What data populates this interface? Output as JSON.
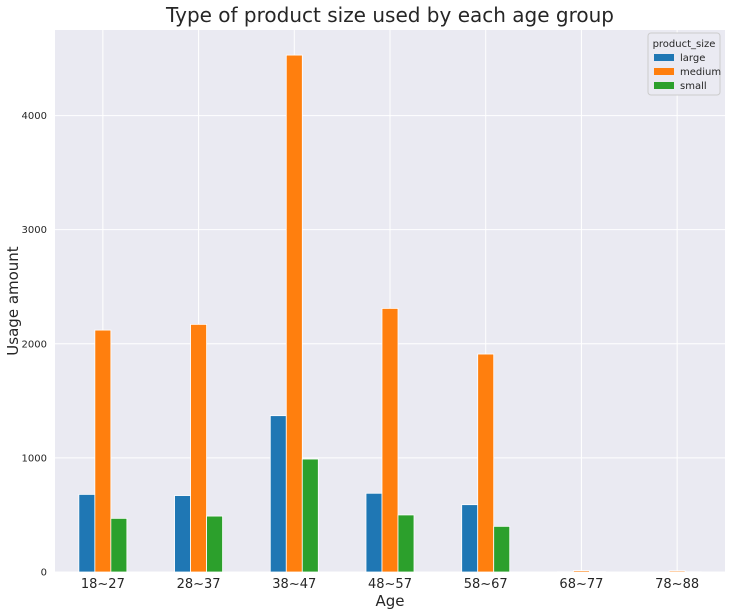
{
  "chart_data": {
    "type": "bar",
    "title": "Type of product size used by each age group",
    "xlabel": "Age",
    "ylabel": "Usage amount",
    "categories": [
      "18~27",
      "28~37",
      "38~47",
      "48~57",
      "58~67",
      "68~77",
      "78~88"
    ],
    "series": [
      {
        "name": "large",
        "color": "#1f77b4",
        "values": [
          680,
          670,
          1370,
          690,
          590,
          2,
          1
        ]
      },
      {
        "name": "medium",
        "color": "#ff7f0e",
        "values": [
          2120,
          2170,
          4530,
          2310,
          1910,
          12,
          10
        ]
      },
      {
        "name": "small",
        "color": "#2ca02c",
        "values": [
          470,
          490,
          990,
          500,
          400,
          3,
          2
        ]
      }
    ],
    "ylim": [
      0,
      4750
    ],
    "yticks": [
      "0",
      "1000",
      "2000",
      "3000",
      "4000"
    ],
    "legend": {
      "title": "product_size",
      "placement": "top-right"
    },
    "grid": true,
    "background": "#eaeaf2"
  }
}
